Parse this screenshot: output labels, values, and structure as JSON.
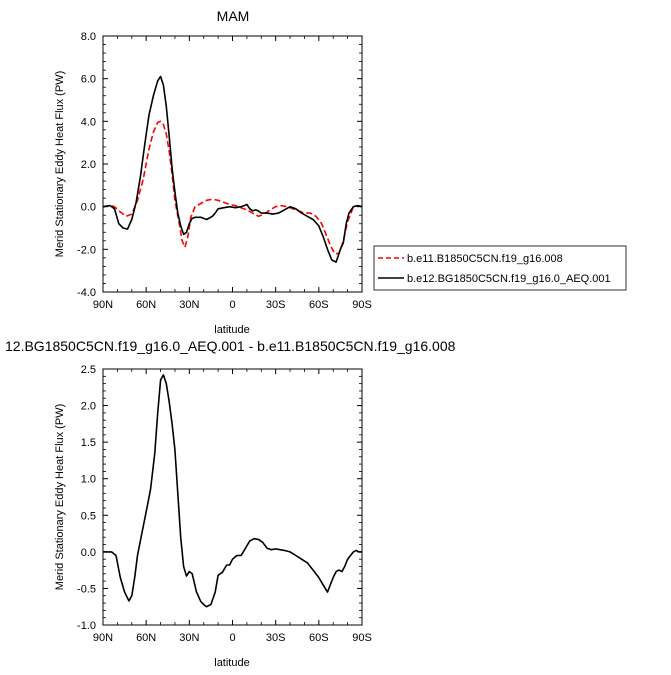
{
  "chart_data": [
    {
      "type": "line",
      "title": "MAM",
      "xlabel": "latitude",
      "ylabel": "Merid Stationary Eddy Heat Flux (PW)",
      "xlim": [
        90,
        -90
      ],
      "ylim": [
        -4.0,
        8.0
      ],
      "xticks": [
        90,
        60,
        30,
        0,
        -30,
        -60,
        -90
      ],
      "xtick_labels": [
        "90N",
        "60N",
        "30N",
        "0",
        "30S",
        "60S",
        "90S"
      ],
      "yticks": [
        -4,
        -2,
        0,
        2,
        4,
        6,
        8
      ],
      "ytick_labels": [
        "-4.0",
        "-2.0",
        "0.0",
        "2.0",
        "4.0",
        "6.0",
        "8.0"
      ],
      "legend_position": "right",
      "series": [
        {
          "name": "b.e11.B1850C5CN.f19_g16.008",
          "color": "#ff0000",
          "dash": "dashed",
          "x": [
            90,
            85,
            82,
            78,
            74,
            70,
            66,
            62,
            58,
            55,
            52,
            50,
            48,
            46,
            44,
            42,
            40,
            37,
            35,
            33,
            31,
            29,
            26,
            22,
            18,
            14,
            10,
            6,
            2,
            -2,
            -6,
            -10,
            -14,
            -18,
            -22,
            -26,
            -30,
            -34,
            -38,
            -42,
            -46,
            -50,
            -54,
            -58,
            -62,
            -65,
            -68,
            -71,
            -74,
            -77,
            -80,
            -84,
            -87,
            -90
          ],
          "y": [
            0.0,
            0.05,
            0.0,
            -0.25,
            -0.45,
            -0.35,
            0.3,
            1.3,
            2.7,
            3.5,
            3.95,
            4.0,
            3.85,
            3.4,
            2.6,
            1.5,
            0.3,
            -0.8,
            -1.6,
            -1.9,
            -1.4,
            -0.5,
            0.0,
            0.15,
            0.3,
            0.35,
            0.3,
            0.2,
            0.1,
            0.05,
            -0.05,
            -0.15,
            -0.3,
            -0.45,
            -0.35,
            -0.15,
            0.0,
            0.05,
            0.0,
            -0.1,
            -0.2,
            -0.3,
            -0.3,
            -0.45,
            -0.8,
            -1.3,
            -1.8,
            -2.2,
            -2.2,
            -1.6,
            -0.7,
            0.0,
            0.05,
            0.0
          ]
        },
        {
          "name": "b.e12.BG1850C5CN.f19_g16.0_AEQ.001",
          "color": "#000000",
          "dash": "solid",
          "x": [
            90,
            85,
            82,
            79,
            76,
            73,
            70,
            67,
            64,
            61,
            58,
            55,
            52,
            50,
            48,
            46,
            44,
            42,
            40,
            38,
            36,
            34,
            32,
            30,
            28,
            26,
            22,
            18,
            14,
            12,
            10,
            6,
            2,
            -2,
            -6,
            -10,
            -12,
            -14,
            -16,
            -18,
            -20,
            -24,
            -28,
            -32,
            -36,
            -40,
            -44,
            -48,
            -52,
            -56,
            -60,
            -63,
            -66,
            -69,
            -72,
            -75,
            -77,
            -79,
            -81,
            -84,
            -87,
            -90
          ],
          "y": [
            0.0,
            0.05,
            -0.1,
            -0.8,
            -1.0,
            -1.05,
            -0.6,
            0.2,
            1.4,
            2.9,
            4.3,
            5.2,
            5.9,
            6.1,
            5.7,
            4.7,
            3.3,
            1.8,
            0.7,
            -0.3,
            -0.9,
            -1.3,
            -1.2,
            -0.8,
            -0.55,
            -0.5,
            -0.5,
            -0.6,
            -0.45,
            -0.3,
            -0.1,
            -0.05,
            0.0,
            -0.05,
            0.0,
            0.1,
            -0.1,
            -0.2,
            -0.15,
            -0.2,
            -0.3,
            -0.3,
            -0.35,
            -0.3,
            -0.15,
            0.0,
            -0.1,
            -0.3,
            -0.45,
            -0.6,
            -0.9,
            -1.4,
            -2.0,
            -2.5,
            -2.6,
            -2.0,
            -1.7,
            -0.8,
            -0.3,
            0.0,
            0.05,
            0.0
          ]
        }
      ]
    },
    {
      "type": "line",
      "title": "12.BG1850C5CN.f19_g16.0_AEQ.001 - b.e11.B1850C5CN.f19_g16.008",
      "xlabel": "latitude",
      "ylabel": "Merid Stationary Eddy Heat Flux (PW)",
      "xlim": [
        90,
        -90
      ],
      "ylim": [
        -1.0,
        2.5
      ],
      "xticks": [
        90,
        60,
        30,
        0,
        -30,
        -60,
        -90
      ],
      "xtick_labels": [
        "90N",
        "60N",
        "30N",
        "0",
        "30S",
        "60S",
        "90S"
      ],
      "yticks": [
        -1.0,
        -0.5,
        0.0,
        0.5,
        1.0,
        1.5,
        2.0,
        2.5
      ],
      "ytick_labels": [
        "-1.0",
        "-0.5",
        "0.0",
        "0.5",
        "1.0",
        "1.5",
        "2.0",
        "2.5"
      ],
      "series": [
        {
          "color": "#000000",
          "dash": "solid",
          "x": [
            90,
            87,
            84,
            81,
            78,
            75,
            72,
            70,
            68,
            66,
            63,
            60,
            57,
            54,
            52,
            50,
            48,
            46,
            44,
            42,
            40,
            38,
            36,
            34,
            32,
            30,
            28,
            25,
            22,
            20,
            18,
            15,
            12,
            10,
            7,
            4,
            2,
            0,
            -3,
            -6,
            -9,
            -12,
            -15,
            -18,
            -21,
            -24,
            -27,
            -30,
            -33,
            -36,
            -40,
            -44,
            -48,
            -52,
            -56,
            -60,
            -63,
            -66,
            -68,
            -70,
            -72,
            -74,
            -76,
            -78,
            -80,
            -82,
            -84,
            -86,
            -88,
            -90
          ],
          "y": [
            0.0,
            0.0,
            0.0,
            -0.05,
            -0.35,
            -0.55,
            -0.67,
            -0.6,
            -0.35,
            -0.05,
            0.25,
            0.55,
            0.85,
            1.35,
            1.9,
            2.35,
            2.42,
            2.3,
            2.05,
            1.75,
            1.4,
            0.8,
            0.2,
            -0.2,
            -0.33,
            -0.27,
            -0.3,
            -0.55,
            -0.68,
            -0.72,
            -0.75,
            -0.72,
            -0.55,
            -0.32,
            -0.28,
            -0.18,
            -0.18,
            -0.1,
            -0.05,
            -0.05,
            0.05,
            0.15,
            0.18,
            0.17,
            0.13,
            0.05,
            0.03,
            0.04,
            0.03,
            0.02,
            0.0,
            -0.05,
            -0.1,
            -0.15,
            -0.25,
            -0.35,
            -0.45,
            -0.55,
            -0.45,
            -0.35,
            -0.27,
            -0.25,
            -0.27,
            -0.2,
            -0.1,
            -0.05,
            0.0,
            0.02,
            0.0,
            0.0
          ]
        }
      ]
    }
  ]
}
